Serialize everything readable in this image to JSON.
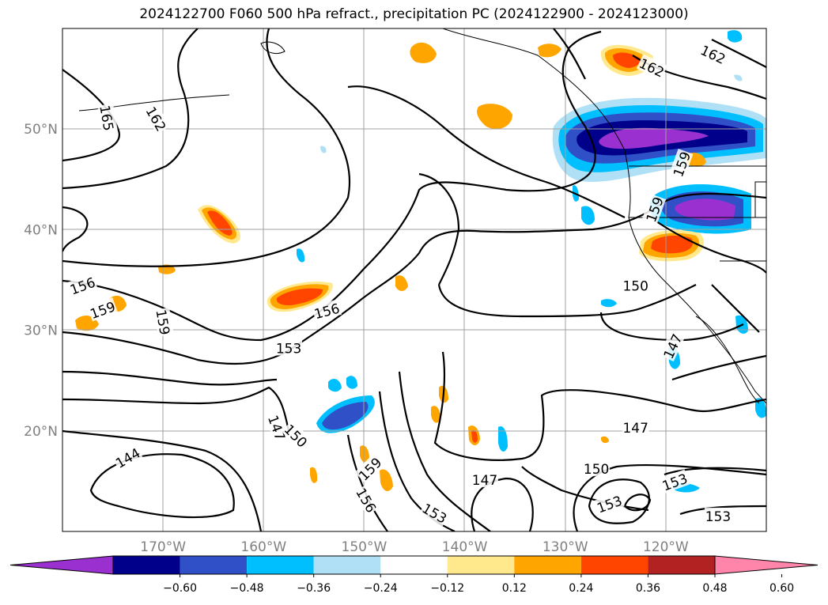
{
  "title": "2024122700 F060 500 hPa refract., precipitation PC (2024122900 - 2024123000)",
  "map": {
    "lon_range": [
      -180,
      -110
    ],
    "lat_range": [
      10,
      60
    ],
    "lat_ticks": [
      {
        "value": 20,
        "label": "20°N"
      },
      {
        "value": 30,
        "label": "30°N"
      },
      {
        "value": 40,
        "label": "40°N"
      },
      {
        "value": 50,
        "label": "50°N"
      }
    ],
    "lon_ticks": [
      {
        "value": -170,
        "label": "170°W"
      },
      {
        "value": -160,
        "label": "160°W"
      },
      {
        "value": -150,
        "label": "150°W"
      },
      {
        "value": -140,
        "label": "140°W"
      },
      {
        "value": -130,
        "label": "130°W"
      },
      {
        "value": -120,
        "label": "120°W"
      }
    ],
    "contour_labels": [
      {
        "text": "165",
        "lon": -175.6,
        "lat": 51.1,
        "rot": 80
      },
      {
        "text": "162",
        "lon": -170.7,
        "lat": 51.0,
        "rot": 60
      },
      {
        "text": "162",
        "lon": -121.4,
        "lat": 56.1,
        "rot": 25
      },
      {
        "text": "162",
        "lon": -115.3,
        "lat": 57.4,
        "rot": 25
      },
      {
        "text": "159",
        "lon": -118.4,
        "lat": 46.5,
        "rot": -70
      },
      {
        "text": "159",
        "lon": -121.1,
        "lat": 42.0,
        "rot": -70
      },
      {
        "text": "156",
        "lon": -178.0,
        "lat": 34.4,
        "rot": -20
      },
      {
        "text": "159",
        "lon": -176.0,
        "lat": 32.0,
        "rot": -20
      },
      {
        "text": "159",
        "lon": -170.0,
        "lat": 30.8,
        "rot": 80
      },
      {
        "text": "156",
        "lon": -153.7,
        "lat": 31.9,
        "rot": -15
      },
      {
        "text": "153",
        "lon": -157.5,
        "lat": 28.2,
        "rot": 0
      },
      {
        "text": "150",
        "lon": -123.0,
        "lat": 34.4,
        "rot": 0
      },
      {
        "text": "147",
        "lon": -119.3,
        "lat": 28.4,
        "rot": -65
      },
      {
        "text": "147",
        "lon": -158.7,
        "lat": 20.3,
        "rot": 70
      },
      {
        "text": "150",
        "lon": -156.8,
        "lat": 19.5,
        "rot": 45
      },
      {
        "text": "147",
        "lon": -123.0,
        "lat": 20.3,
        "rot": 0
      },
      {
        "text": "144",
        "lon": -173.5,
        "lat": 17.3,
        "rot": -30
      },
      {
        "text": "159",
        "lon": -149.4,
        "lat": 16.2,
        "rot": -45
      },
      {
        "text": "156",
        "lon": -149.8,
        "lat": 13.1,
        "rot": 60
      },
      {
        "text": "147",
        "lon": -138.0,
        "lat": 15.1,
        "rot": 0
      },
      {
        "text": "150",
        "lon": -126.9,
        "lat": 16.2,
        "rot": 0
      },
      {
        "text": "153",
        "lon": -143.0,
        "lat": 11.8,
        "rot": 30
      },
      {
        "text": "153",
        "lon": -125.6,
        "lat": 12.7,
        "rot": -20
      },
      {
        "text": "153",
        "lon": -119.1,
        "lat": 14.9,
        "rot": -20
      },
      {
        "text": "153",
        "lon": -114.8,
        "lat": 11.5,
        "rot": 0
      }
    ]
  },
  "colorbar": {
    "colors": [
      "#9b30d0",
      "#00008b",
      "#3050c8",
      "#00bfff",
      "#afe0f5",
      "#ffffff",
      "#ffe98c",
      "#ffa500",
      "#ff4500",
      "#b22222",
      "#ff85aa"
    ],
    "tick_labels": [
      "−0.60",
      "−0.48",
      "−0.36",
      "−0.24",
      "−0.12",
      "0.12",
      "0.24",
      "0.36",
      "0.48",
      "0.60"
    ]
  }
}
